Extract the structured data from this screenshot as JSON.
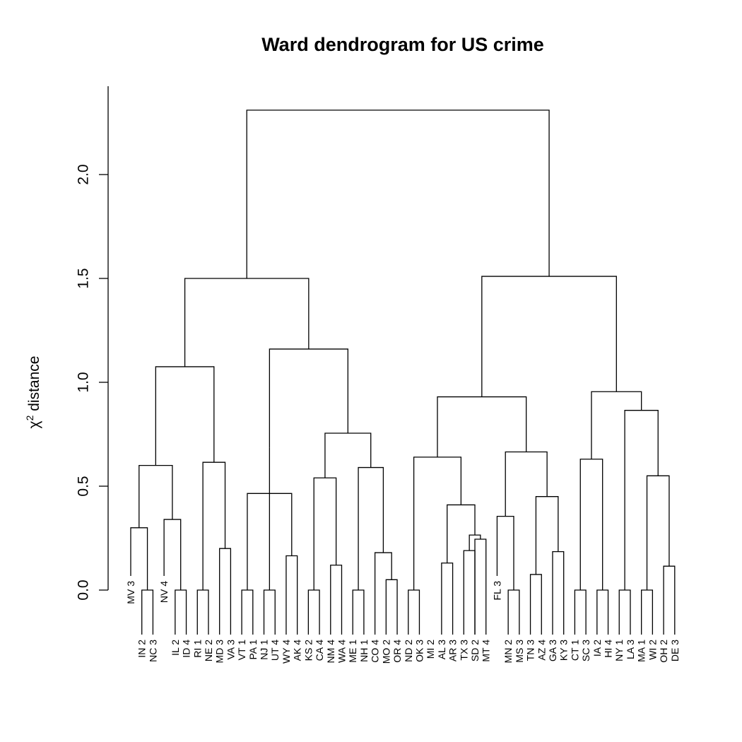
{
  "chart_data": {
    "type": "dendrogram",
    "title": "Ward dendrogram for US crime",
    "ylabel": "χ² distance",
    "ylabel_base": "χ",
    "ylabel_sup": "2",
    "ylabel_rest": " distance",
    "ylim": [
      0,
      2.35
    ],
    "yticks": [
      "0.0",
      "0.5",
      "1.0",
      "1.5",
      "2.0"
    ],
    "yticks_values": [
      0,
      0.5,
      1.0,
      1.5,
      2.0
    ],
    "leaves": [
      "MV 3",
      "IN 2",
      "NC 3",
      "NV 4",
      "IL 2",
      "ID 4",
      "RI 1",
      "NE 2",
      "MD 3",
      "VA 3",
      "VT 1",
      "PA 1",
      "NJ 1",
      "UT 4",
      "WY 4",
      "AK 4",
      "KS 2",
      "CA 4",
      "NM 4",
      "WA 4",
      "ME 1",
      "NH 1",
      "CO 4",
      "MO 2",
      "OR 4",
      "ND 2",
      "OK 3",
      "MI 2",
      "AL 3",
      "AR 3",
      "TX 3",
      "SD 2",
      "MT 4",
      "FL 3",
      "MN 2",
      "MS 3",
      "TN 3",
      "AZ 4",
      "GA 3",
      "KY 3",
      "CT 1",
      "SC 3",
      "IA 2",
      "HI 4",
      "NY 1",
      "LA 3",
      "MA 1",
      "WI 2",
      "OH 2",
      "DE 3"
    ],
    "merges": [
      [
        1,
        2,
        0
      ],
      [
        4,
        5,
        0
      ],
      [
        6,
        7,
        0
      ],
      [
        10,
        11,
        0
      ],
      [
        12,
        13,
        0
      ],
      [
        16,
        17,
        0
      ],
      [
        20,
        21,
        0
      ],
      [
        25,
        26,
        0
      ],
      [
        34,
        35,
        0
      ],
      [
        40,
        41,
        0
      ],
      [
        42,
        43,
        0
      ],
      [
        44,
        45,
        0
      ],
      [
        46,
        47,
        0
      ],
      [
        23,
        24,
        0.05
      ],
      [
        36,
        37,
        0.075
      ],
      [
        48,
        49,
        0.115
      ],
      [
        18,
        19,
        0.12
      ],
      [
        28,
        29,
        0.13
      ],
      [
        14,
        15,
        0.165
      ],
      [
        30,
        31,
        0.19
      ],
      [
        38,
        39,
        0.185
      ],
      [
        8,
        9,
        0.2
      ],
      [
        22,
        "m14",
        0.18
      ],
      [
        "m4",
        "m19",
        0.465
      ],
      [
        31,
        32,
        0.245
      ],
      [
        "m20",
        "m25",
        0.265
      ],
      [
        0,
        "m1",
        0.3
      ],
      [
        3,
        "m2",
        0.34
      ],
      [
        33,
        "m9",
        0.355
      ],
      [
        "m18",
        "m26",
        0.41
      ],
      [
        "m15",
        "m21",
        0.45
      ],
      [
        "m6",
        "m17",
        0.54
      ],
      [
        "m13",
        "m16",
        0.55
      ],
      [
        "m7",
        "m23",
        0.59
      ],
      [
        "m3",
        "m22",
        0.615
      ],
      [
        "m27",
        "m28",
        0.6
      ],
      [
        "m10",
        "m11",
        0.63
      ],
      [
        "m8",
        "m30",
        0.64
      ],
      [
        "m29",
        "m31",
        0.665
      ],
      [
        "m5",
        "m24",
        0.685
      ],
      [
        "m32",
        "m34",
        0.755
      ],
      [
        "m12",
        "m33",
        0.865
      ],
      [
        "m36",
        "m35",
        1.075
      ],
      [
        "m40",
        "m41",
        1.16
      ],
      [
        "m38",
        "m39",
        0.93
      ],
      [
        "m37",
        "m42",
        0.955
      ],
      [
        "m43",
        "m44",
        1.5
      ],
      [
        "m45",
        "m46",
        1.51
      ],
      [
        "m47",
        "m48",
        2.31
      ]
    ]
  }
}
